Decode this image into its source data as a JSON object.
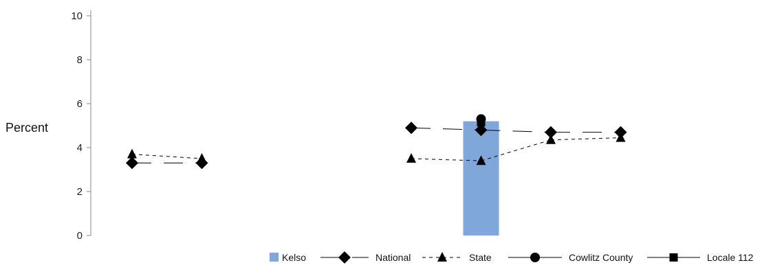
{
  "chart_data": {
    "type": "bar",
    "title": "",
    "xlabel": "",
    "ylabel": "Percent",
    "ylim": [
      0,
      10
    ],
    "yticks": [
      0,
      2,
      4,
      6,
      8,
      10
    ],
    "grid": false,
    "legend_placement": "bottom-right",
    "x": [
      1,
      2,
      3,
      4,
      5,
      6,
      7,
      8
    ],
    "series": [
      {
        "name": "Kelso",
        "kind": "bar",
        "color": "#7FA7D9",
        "values": [
          null,
          null,
          null,
          null,
          null,
          5.2,
          null,
          null
        ]
      },
      {
        "name": "National",
        "kind": "line",
        "marker": "diamond",
        "dash": "long",
        "color": "#000000",
        "values": [
          3.3,
          3.3,
          null,
          null,
          4.9,
          4.8,
          4.7,
          4.7
        ]
      },
      {
        "name": "State",
        "kind": "line",
        "marker": "triangle",
        "dash": "short",
        "color": "#000000",
        "values": [
          3.7,
          3.5,
          null,
          null,
          3.5,
          3.4,
          4.35,
          4.45
        ]
      },
      {
        "name": "Cowlitz County",
        "kind": "line",
        "marker": "circle",
        "dash": "solid",
        "color": "#000000",
        "values": [
          null,
          null,
          null,
          null,
          null,
          5.3,
          null,
          null
        ]
      },
      {
        "name": "Locale 112",
        "kind": "line",
        "marker": "square",
        "dash": "solid",
        "color": "#000000",
        "values": [
          null,
          null,
          null,
          null,
          null,
          5.15,
          null,
          null
        ]
      }
    ]
  }
}
